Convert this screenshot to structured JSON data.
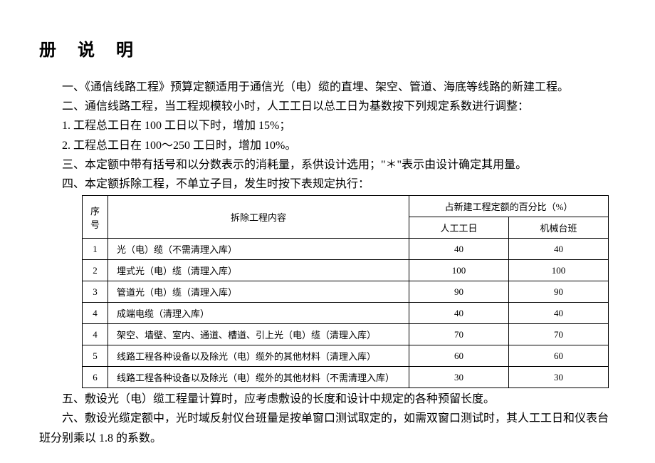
{
  "title": "册 说 明",
  "p1": "一、《通信线路工程》预算定额适用于通信光（电）缆的直埋、架空、管道、海底等线路的新建工程。",
  "p2": "二、通信线路工程，当工程规模较小时，人工工日以总工日为基数按下列规定系数进行调整：",
  "p3": "1. 工程总工日在 100 工日以下时，增加 15%；",
  "p4": "2. 工程总工日在 100～250 工日时，增加 10%。",
  "p5": "三、本定额中带有括号和以分数表示的消耗量，系供设计选用；\"＊\"表示由设计确定其用量。",
  "p6": "四、本定额拆除工程，不单立子目，发生时按下表规定执行：",
  "p7": "五、敷设光（电）缆工程量计算时，应考虑敷设的长度和设计中规定的各种预留长度。",
  "p8": "六、敷设光缆定额中，光时域反射仪台班量是按单窗口测试取定的，如需双窗口测试时，其人工工日和仪表台班分别乘以 1.8 的系数。",
  "table": {
    "header_seq": "序号",
    "header_content": "拆除工程内容",
    "header_percent": "占新建工程定额的百分比（%）",
    "header_labor": "人工工日",
    "header_machine": "机械台班",
    "rows": [
      {
        "seq": "1",
        "content": "光（电）缆（不需清理入库）",
        "labor": "40",
        "machine": "40"
      },
      {
        "seq": "2",
        "content": "埋式光（电）缆（清理入库）",
        "labor": "100",
        "machine": "100"
      },
      {
        "seq": "3",
        "content": "管道光（电）缆（清理入库）",
        "labor": "90",
        "machine": "90"
      },
      {
        "seq": "4",
        "content": "成端电缆（清理入库）",
        "labor": "40",
        "machine": "40"
      },
      {
        "seq": "4",
        "content": "架空、墙壁、室内、通道、槽道、引上光（电）缆（清理入库）",
        "labor": "70",
        "machine": "70"
      },
      {
        "seq": "5",
        "content": "线路工程各种设备以及除光（电）缆外的其他材料（清理入库）",
        "labor": "60",
        "machine": "60"
      },
      {
        "seq": "6",
        "content": "线路工程各种设备以及除光（电）缆外的其他材料（不需清理入库）",
        "labor": "30",
        "machine": "30"
      }
    ]
  }
}
